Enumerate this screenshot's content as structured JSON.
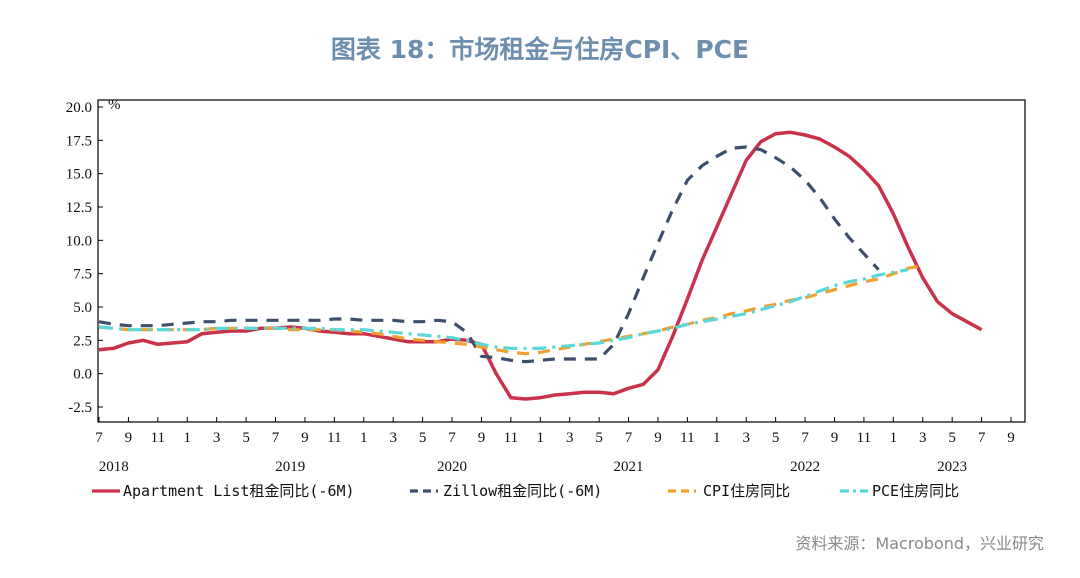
{
  "title": "图表 18：市场租金与住房CPI、PCE",
  "source": "资料来源：Macrobond，兴业研究",
  "chart_data": {
    "type": "line",
    "title": "图表 18：市场租金与住房CPI、PCE",
    "ylabel": "%",
    "ylim": [
      -2.5,
      20.0
    ],
    "yticks": [
      "20.0",
      "17.5",
      "15.0",
      "12.5",
      "10.0",
      "7.5",
      "5.0",
      "2.5",
      "0.0",
      "-2.5"
    ],
    "x_start": "2018-07",
    "x_end": "2023-09",
    "month_ticks": [
      "7",
      "9",
      "11",
      "1",
      "3",
      "5",
      "7",
      "9",
      "11",
      "1",
      "3",
      "5",
      "7",
      "9",
      "11",
      "1",
      "3",
      "5",
      "7",
      "9",
      "11",
      "1",
      "3",
      "5",
      "7",
      "9",
      "11",
      "1",
      "3",
      "5",
      "7",
      "9"
    ],
    "year_labels": [
      {
        "label": "2018",
        "month": "2018-08"
      },
      {
        "label": "2019",
        "month": "2019-08"
      },
      {
        "label": "2020",
        "month": "2020-07"
      },
      {
        "label": "2021",
        "month": "2021-07"
      },
      {
        "label": "2022",
        "month": "2022-07"
      },
      {
        "label": "2023",
        "month": "2023-05"
      }
    ],
    "series": [
      {
        "name": "Apartment List租金同比(-6M)",
        "color": "#c8334b",
        "dash": "solid",
        "start": "2018-07",
        "values": [
          1.8,
          1.9,
          2.3,
          2.5,
          2.2,
          2.3,
          2.4,
          3.0,
          3.1,
          3.2,
          3.2,
          3.4,
          3.4,
          3.5,
          3.4,
          3.2,
          3.1,
          3.0,
          3.0,
          2.8,
          2.6,
          2.4,
          2.4,
          2.4,
          2.6,
          2.5,
          2.2,
          0.0,
          -1.8,
          -1.9,
          -1.8,
          -1.6,
          -1.5,
          -1.4,
          -1.4,
          -1.5,
          -1.1,
          -0.8,
          0.3,
          2.8,
          5.6,
          8.5,
          11.0,
          13.5,
          16.0,
          17.4,
          18.0,
          18.1,
          17.9,
          17.6,
          17.0,
          16.3,
          15.3,
          14.1,
          12.0,
          9.5,
          7.2,
          5.4,
          4.5,
          3.9,
          3.3
        ]
      },
      {
        "name": "Zillow租金同比(-6M)",
        "color": "#3e4f6b",
        "dash": "dash",
        "start": "2018-07",
        "values": [
          3.9,
          3.7,
          3.6,
          3.6,
          3.6,
          3.7,
          3.8,
          3.9,
          3.9,
          4.0,
          4.0,
          4.0,
          4.0,
          4.0,
          4.0,
          4.0,
          4.1,
          4.1,
          4.0,
          4.0,
          4.0,
          3.9,
          3.9,
          4.0,
          3.9,
          3.1,
          1.3,
          1.2,
          1.0,
          0.9,
          1.0,
          1.1,
          1.1,
          1.1,
          1.1,
          2.2,
          4.5,
          7.2,
          9.8,
          12.3,
          14.5,
          15.6,
          16.3,
          16.9,
          17.0,
          16.8,
          16.2,
          15.5,
          14.5,
          13.2,
          11.6,
          10.2,
          9.0,
          7.8
        ]
      },
      {
        "name": "CPI住房同比",
        "color": "#f0a030",
        "dash": "dash",
        "start": "2018-07",
        "values": [
          3.5,
          3.4,
          3.3,
          3.3,
          3.3,
          3.3,
          3.3,
          3.3,
          3.4,
          3.4,
          3.4,
          3.4,
          3.4,
          3.3,
          3.3,
          3.3,
          3.3,
          3.2,
          3.1,
          3.0,
          2.8,
          2.6,
          2.5,
          2.4,
          2.3,
          2.2,
          2.0,
          1.8,
          1.6,
          1.5,
          1.6,
          1.8,
          2.0,
          2.2,
          2.4,
          2.6,
          2.8,
          3.0,
          3.2,
          3.5,
          3.7,
          4.0,
          4.2,
          4.5,
          4.7,
          5.0,
          5.2,
          5.5,
          5.7,
          6.0,
          6.3,
          6.6,
          6.9,
          7.1,
          7.5,
          7.9,
          8.1
        ]
      },
      {
        "name": "PCE住房同比",
        "color": "#5ad8d8",
        "dash": "dashdot",
        "start": "2018-07",
        "values": [
          3.5,
          3.4,
          3.3,
          3.3,
          3.3,
          3.3,
          3.3,
          3.3,
          3.4,
          3.4,
          3.4,
          3.4,
          3.4,
          3.4,
          3.4,
          3.4,
          3.3,
          3.3,
          3.3,
          3.2,
          3.1,
          3.0,
          2.9,
          2.8,
          2.7,
          2.5,
          2.2,
          2.0,
          1.9,
          1.9,
          1.9,
          2.0,
          2.1,
          2.2,
          2.3,
          2.5,
          2.7,
          3.0,
          3.2,
          3.4,
          3.7,
          3.9,
          4.1,
          4.3,
          4.5,
          4.8,
          5.1,
          5.4,
          5.8,
          6.2,
          6.6,
          6.9,
          7.1,
          7.4,
          7.6,
          7.8
        ]
      }
    ],
    "legend": [
      "Apartment List租金同比(-6M)",
      "Zillow租金同比(-6M)",
      "CPI住房同比",
      "PCE住房同比"
    ],
    "legend_position": "bottom"
  }
}
